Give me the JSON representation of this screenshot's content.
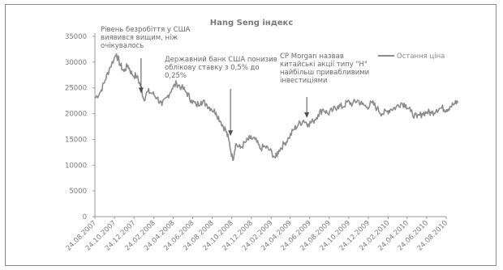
{
  "chart_data": {
    "type": "line",
    "title": "Hang Seng індекс",
    "xlabel": "",
    "ylabel": "",
    "ylim": [
      0,
      35000
    ],
    "y_ticks": [
      0,
      5000,
      10000,
      15000,
      20000,
      25000,
      30000,
      35000
    ],
    "x_tick_labels": [
      "24.08.2007",
      "24.10.2007",
      "24.12.2007",
      "24.02.2008",
      "24.04.2008",
      "24.06.2008",
      "24.08.2008",
      "24.10.2008",
      "24.12.2008",
      "24.02.2009",
      "24.04.2009",
      "24.06.2009",
      "24.08.2009",
      "24.10.2009",
      "24.12.2009",
      "24.02.2010",
      "24.04.2010",
      "24.06.2010",
      "24.08.2010"
    ],
    "grid": false,
    "legend_position": "top-right",
    "series": [
      {
        "name": "Остання ціна",
        "color": "#8c8c8c",
        "points": [
          [
            "2007-08-24",
            23000
          ],
          [
            "2007-09-10",
            24200
          ],
          [
            "2007-09-25",
            26500
          ],
          [
            "2007-10-10",
            29000
          ],
          [
            "2007-10-30",
            31600
          ],
          [
            "2007-11-10",
            29600
          ],
          [
            "2007-11-22",
            28200
          ],
          [
            "2007-12-05",
            29400
          ],
          [
            "2007-12-18",
            27600
          ],
          [
            "2008-01-02",
            27200
          ],
          [
            "2008-01-15",
            25200
          ],
          [
            "2008-01-23",
            22800
          ],
          [
            "2008-02-05",
            24300
          ],
          [
            "2008-02-20",
            23900
          ],
          [
            "2008-03-05",
            23100
          ],
          [
            "2008-03-20",
            21600
          ],
          [
            "2008-04-05",
            23200
          ],
          [
            "2008-04-20",
            24800
          ],
          [
            "2008-05-05",
            25900
          ],
          [
            "2008-05-20",
            25100
          ],
          [
            "2008-06-05",
            24100
          ],
          [
            "2008-06-20",
            22600
          ],
          [
            "2008-07-05",
            21600
          ],
          [
            "2008-07-20",
            22400
          ],
          [
            "2008-08-05",
            21900
          ],
          [
            "2008-08-20",
            21000
          ],
          [
            "2008-09-05",
            20200
          ],
          [
            "2008-09-20",
            18400
          ],
          [
            "2008-10-05",
            16800
          ],
          [
            "2008-10-15",
            14800
          ],
          [
            "2008-10-27",
            11000
          ],
          [
            "2008-11-05",
            14100
          ],
          [
            "2008-11-20",
            13300
          ],
          [
            "2008-12-05",
            14400
          ],
          [
            "2008-12-20",
            15200
          ],
          [
            "2009-01-05",
            15000
          ],
          [
            "2009-01-20",
            13200
          ],
          [
            "2009-02-05",
            13600
          ],
          [
            "2009-02-20",
            12900
          ],
          [
            "2009-03-09",
            11400
          ],
          [
            "2009-03-20",
            12900
          ],
          [
            "2009-04-05",
            14100
          ],
          [
            "2009-04-20",
            15300
          ],
          [
            "2009-05-05",
            16900
          ],
          [
            "2009-05-20",
            17900
          ],
          [
            "2009-06-05",
            18700
          ],
          [
            "2009-06-20",
            18000
          ],
          [
            "2009-07-05",
            18500
          ],
          [
            "2009-07-20",
            19800
          ],
          [
            "2009-08-05",
            20900
          ],
          [
            "2009-08-20",
            20000
          ],
          [
            "2009-09-05",
            20700
          ],
          [
            "2009-09-20",
            21500
          ],
          [
            "2009-10-05",
            21300
          ],
          [
            "2009-10-20",
            22300
          ],
          [
            "2009-11-05",
            21900
          ],
          [
            "2009-11-20",
            22600
          ],
          [
            "2009-12-05",
            21800
          ],
          [
            "2009-12-20",
            21300
          ],
          [
            "2010-01-05",
            22100
          ],
          [
            "2010-01-20",
            21000
          ],
          [
            "2010-02-05",
            20000
          ],
          [
            "2010-02-20",
            20400
          ],
          [
            "2010-03-05",
            20900
          ],
          [
            "2010-03-20",
            21200
          ],
          [
            "2010-04-05",
            22100
          ],
          [
            "2010-04-20",
            21700
          ],
          [
            "2010-05-05",
            20400
          ],
          [
            "2010-05-25",
            19200
          ],
          [
            "2010-06-10",
            20000
          ],
          [
            "2010-06-25",
            20300
          ],
          [
            "2010-07-10",
            20100
          ],
          [
            "2010-07-25",
            20800
          ],
          [
            "2010-08-10",
            21100
          ],
          [
            "2010-08-25",
            20800
          ],
          [
            "2010-09-05",
            21400
          ],
          [
            "2010-09-20",
            21900
          ],
          [
            "2010-09-30",
            22300
          ]
        ]
      }
    ],
    "annotations": [
      {
        "lines": [
          "Рівень безробіття у США",
          "виявився вищим, ніж",
          "очікувалось"
        ],
        "arrow_at": "2008-01-15",
        "arrow_value": 23800
      },
      {
        "lines": [
          "Державний банк США понизив",
          "облікову ставку з 0,5% до",
          "0,25%"
        ],
        "arrow_at": "2008-10-20",
        "arrow_value": 15500
      },
      {
        "lines": [
          "CP Morgan назвав",
          "китайські акції типу \"H\"",
          "найбільш привабливими",
          "інвестиціями"
        ],
        "arrow_at": "2009-06-15",
        "arrow_value": 19000
      }
    ]
  }
}
